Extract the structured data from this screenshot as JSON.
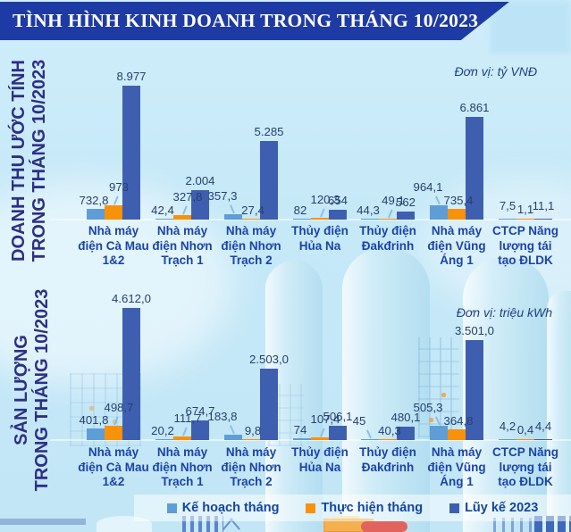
{
  "banner": {
    "title": "TÌNH HÌNH KINH DOANH TRONG THÁNG 10/2023"
  },
  "colors": {
    "plan": "#5F9DD6",
    "actual": "#F8920A",
    "cumulative": "#3E5FB0",
    "banner_bg": "#1E3AA5",
    "category_text": "#1B44A8",
    "value_text": "#26406E",
    "side_title_text": "#2D2F84"
  },
  "legend": [
    {
      "label": "Kế hoạch tháng",
      "color_key": "plan"
    },
    {
      "label": "Thực hiện tháng",
      "color_key": "actual"
    },
    {
      "label": "Lũy kế 2023",
      "color_key": "cumulative"
    }
  ],
  "chart_data": [
    {
      "type": "bar",
      "title": "DOANH THU ƯỚC TÍNH TRONG THÁNG 10/2023",
      "title_lines": [
        "DOANH THU ƯỚC TÍNH",
        "TRONG THÁNG 10/2023"
      ],
      "unit": "Đơn vị: tỷ VNĐ",
      "ylabel": "tỷ VNĐ",
      "grid": false,
      "legend_position": "bottom",
      "categories": [
        "Nhà máy điện Cà Mau 1&2",
        "Nhà máy điện Nhơn Trạch 1",
        "Nhà máy điện Nhơn Trạch 2",
        "Thủy điện Hủa Na",
        "Thủy điện Đakđrinh",
        "Nhà máy điện Vũng Áng 1",
        "CTCP Năng lượng tái tạo ĐLDK"
      ],
      "category_lines": [
        [
          "Nhà máy",
          "điện Cà Mau",
          "1&2"
        ],
        [
          "Nhà máy",
          "điện Nhơn",
          "Trạch 1"
        ],
        [
          "Nhà máy",
          "điện Nhơn",
          "Trạch 2"
        ],
        [
          "Thủy điện",
          "Hủa Na"
        ],
        [
          "Thủy điện",
          "Đakđrinh"
        ],
        [
          "Nhà máy",
          "điện Vũng",
          "Áng 1"
        ],
        [
          "CTCP Năng",
          "lượng tái",
          "tạo ĐLDK"
        ]
      ],
      "series": [
        {
          "name": "Kế hoạch tháng",
          "values": [
            732.8,
            42.4,
            357.3,
            82,
            44.3,
            964.1,
            7.5
          ],
          "labels": [
            "732,8",
            "42,4",
            "357,3",
            "82",
            "44,3",
            "964,1",
            "7,5"
          ]
        },
        {
          "name": "Thực hiện tháng",
          "values": [
            973,
            327.8,
            27.4,
            120.3,
            49.1,
            735.4,
            1.1
          ],
          "labels": [
            "973",
            "327,8",
            "27,4",
            "120,3",
            "49,1",
            "735,4",
            "1,1"
          ]
        },
        {
          "name": "Lũy kế 2023",
          "values": [
            8977,
            2004,
            5285,
            654,
            562,
            6861,
            11.1
          ],
          "labels": [
            "8.977",
            "2.004",
            "5.285",
            "654",
            "562",
            "6.861",
            "11,1"
          ]
        }
      ]
    },
    {
      "type": "bar",
      "title": "SẢN LƯỢNG TRONG THÁNG 10/2023",
      "title_lines": [
        "SẢN LƯỢNG",
        "TRONG THÁNG 10/2023"
      ],
      "unit": "Đơn vị: triệu kWh",
      "ylabel": "triệu kWh",
      "grid": false,
      "legend_position": "bottom",
      "categories": [
        "Nhà máy điện Cà Mau 1&2",
        "Nhà máy điện Nhơn Trạch 1",
        "Nhà máy điện Nhơn Trạch 2",
        "Thủy điện Hủa Na",
        "Thủy điện Đakđrinh",
        "Nhà máy điện Vũng Áng 1",
        "CTCP Năng lượng tái tạo ĐLDK"
      ],
      "category_lines": [
        [
          "Nhà máy",
          "điện Cà Mau",
          "1&2"
        ],
        [
          "Nhà máy",
          "điện Nhơn",
          "Trạch 1"
        ],
        [
          "Nhà máy",
          "điện Nhơn",
          "Trạch 2"
        ],
        [
          "Thủy điện",
          "Hủa Na"
        ],
        [
          "Thủy điện",
          "Đakđrinh"
        ],
        [
          "Nhà máy",
          "điện Vũng",
          "Áng 1"
        ],
        [
          "CTCP Năng",
          "lượng tái",
          "tạo ĐLDK"
        ]
      ],
      "series": [
        {
          "name": "Kế hoạch tháng",
          "values": [
            401.8,
            20.2,
            183.8,
            74,
            45,
            505.3,
            4.2
          ],
          "labels": [
            "401,8",
            "20,2",
            "183,8",
            "74",
            "45",
            "505,3",
            "4,2"
          ]
        },
        {
          "name": "Thực hiện tháng",
          "values": [
            498.7,
            111.7,
            9.8,
            107.4,
            40.3,
            364.8,
            0.4
          ],
          "labels": [
            "498,7",
            "111,7",
            "9,8",
            "107,4",
            "40,3",
            "364,8",
            "0,4"
          ]
        },
        {
          "name": "Lũy kế 2023",
          "values": [
            4612.0,
            674.7,
            2503.0,
            506.1,
            480.1,
            3501.0,
            4.4
          ],
          "labels": [
            "4.612,0",
            "674,7",
            "2.503,0",
            "506,1",
            "480,1",
            "3.501,0",
            "4,4"
          ]
        }
      ]
    }
  ]
}
